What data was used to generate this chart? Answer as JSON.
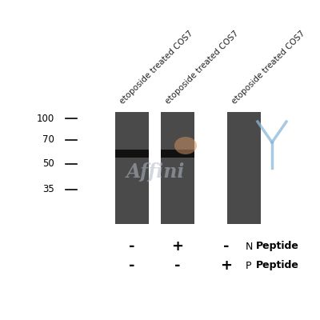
{
  "bg_color": "#ffffff",
  "gel_color": "#4a4a4a",
  "band_color": "#111111",
  "mw_markers": [
    100,
    70,
    50,
    35
  ],
  "lane_labels": [
    "etoposide treated COS7",
    "etoposide treated COS7",
    "etoposide treated COS7"
  ],
  "n_peptide_signs": [
    "-",
    "+",
    "-"
  ],
  "p_peptide_signs": [
    "-",
    "-",
    "+"
  ],
  "watermark_color": "#b0b8c8",
  "logo_blue": "#8ab8d8",
  "logo_orange": "#c89060",
  "sign_fontsize": 13,
  "label_fontsize": 7.5,
  "mw_fontsize": 8.5
}
